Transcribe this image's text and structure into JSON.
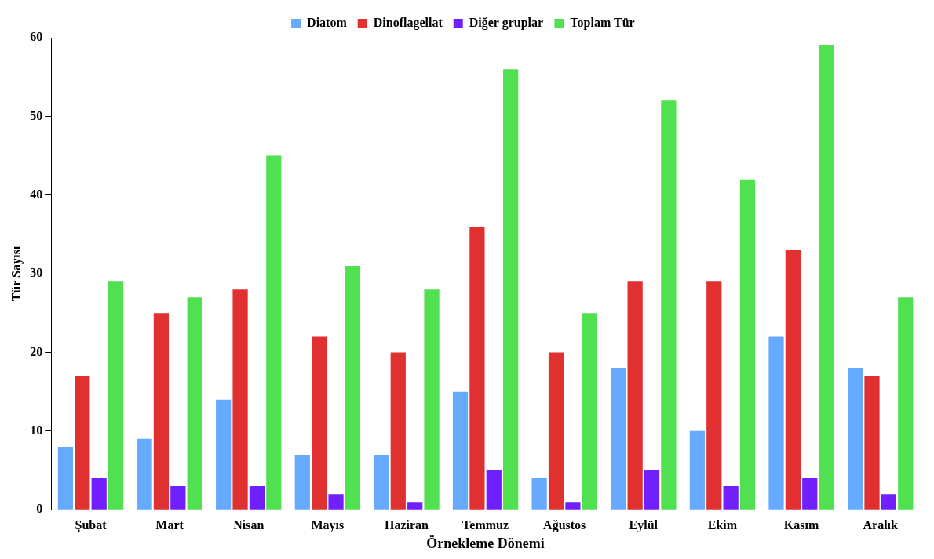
{
  "chart_data": {
    "type": "bar",
    "xlabel": "Örnekleme Dönemi",
    "ylabel": "Tür Sayısı",
    "categories": [
      "Şubat",
      "Mart",
      "Nisan",
      "Mayıs",
      "Haziran",
      "Temmuz",
      "Ağustos",
      "Eylül",
      "Ekim",
      "Kasım",
      "Aralık"
    ],
    "series": [
      {
        "name": "Diatom",
        "color": "#66aaff",
        "values": [
          8,
          9,
          14,
          7,
          7,
          15,
          4,
          18,
          10,
          22,
          18
        ]
      },
      {
        "name": "Dinoflagellat",
        "color": "#e03030",
        "values": [
          17,
          25,
          28,
          22,
          20,
          36,
          20,
          29,
          29,
          33,
          17
        ]
      },
      {
        "name": "Diğer gruplar",
        "color": "#7020ff",
        "values": [
          4,
          3,
          3,
          2,
          1,
          5,
          1,
          5,
          3,
          4,
          2
        ]
      },
      {
        "name": "Toplam Tür",
        "color": "#50e050",
        "values": [
          29,
          27,
          45,
          31,
          28,
          56,
          25,
          52,
          42,
          59,
          27
        ]
      }
    ],
    "ylim": [
      0,
      60
    ],
    "yticks": [
      0,
      10,
      20,
      30,
      40,
      50,
      60
    ],
    "grid": false,
    "legend": "top"
  }
}
